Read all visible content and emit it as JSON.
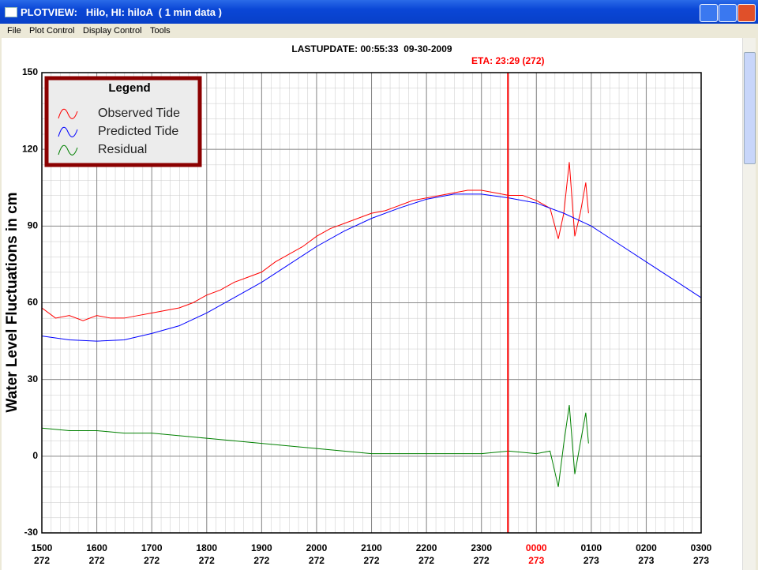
{
  "window": {
    "title": "PLOTVIEW:   Hilo, HI: hiloA  ( 1 min data )"
  },
  "menu": [
    "File",
    "Plot Control",
    "Display Control",
    "Tools"
  ],
  "chart_data": {
    "type": "line",
    "title": "LASTUPDATE: 00:55:33  09-30-2009",
    "ylabel": "Water Level Fluctuations in cm",
    "legend_title": "Legend",
    "eta": {
      "text": "ETA: 23:29 (272)",
      "x": 23.483,
      "color": "#ff0000"
    },
    "xlim": [
      15,
      27
    ],
    "ylim": [
      -30,
      150
    ],
    "yticks": [
      -30,
      0,
      30,
      60,
      90,
      120,
      150
    ],
    "xticks": [
      {
        "value": 15,
        "label": "1500",
        "day": "272"
      },
      {
        "value": 16,
        "label": "1600",
        "day": "272"
      },
      {
        "value": 17,
        "label": "1700",
        "day": "272"
      },
      {
        "value": 18,
        "label": "1800",
        "day": "272"
      },
      {
        "value": 19,
        "label": "1900",
        "day": "272"
      },
      {
        "value": 20,
        "label": "2000",
        "day": "272"
      },
      {
        "value": 21,
        "label": "2100",
        "day": "272"
      },
      {
        "value": 22,
        "label": "2200",
        "day": "272"
      },
      {
        "value": 23,
        "label": "2300",
        "day": "272"
      },
      {
        "value": 24,
        "label": "0000",
        "day": "273"
      },
      {
        "value": 25,
        "label": "0100",
        "day": "273"
      },
      {
        "value": 26,
        "label": "0200",
        "day": "273"
      },
      {
        "value": 27,
        "label": "0300",
        "day": "273"
      }
    ],
    "series": [
      {
        "name": "Observed Tide",
        "color": "#ff0000",
        "x": [
          15,
          15.25,
          15.5,
          15.75,
          16,
          16.25,
          16.5,
          16.75,
          17,
          17.25,
          17.5,
          17.75,
          18,
          18.25,
          18.5,
          18.75,
          19,
          19.25,
          19.5,
          19.75,
          20,
          20.25,
          20.5,
          20.75,
          21,
          21.25,
          21.5,
          21.75,
          22,
          22.25,
          22.5,
          22.75,
          23,
          23.25,
          23.5,
          23.75,
          24,
          24.25,
          24.4,
          24.5,
          24.6,
          24.7,
          24.8,
          24.9,
          24.95
        ],
        "values": [
          58,
          54,
          55,
          53,
          55,
          54,
          54,
          55,
          56,
          57,
          58,
          60,
          63,
          65,
          68,
          70,
          72,
          76,
          79,
          82,
          86,
          89,
          91,
          93,
          95,
          96,
          98,
          100,
          101,
          102,
          103,
          104,
          104,
          103,
          102,
          102,
          100,
          97,
          85,
          95,
          115,
          86,
          95,
          107,
          95
        ]
      },
      {
        "name": "Predicted Tide",
        "color": "#0000ff",
        "x": [
          15,
          15.5,
          16,
          16.5,
          17,
          17.5,
          18,
          18.5,
          19,
          19.5,
          20,
          20.5,
          21,
          21.5,
          22,
          22.5,
          23,
          23.5,
          24,
          24.5,
          25,
          25.5,
          26,
          26.5,
          27
        ],
        "values": [
          47,
          45.5,
          45,
          45.5,
          48,
          51,
          56,
          62,
          68,
          75,
          82,
          88,
          93,
          97,
          100.5,
          102.5,
          102.5,
          101,
          99,
          95,
          90,
          83,
          76,
          69,
          62
        ]
      },
      {
        "name": "Residual",
        "color": "#008000",
        "x": [
          15,
          15.5,
          16,
          16.5,
          17,
          17.5,
          18,
          18.5,
          19,
          19.5,
          20,
          20.5,
          21,
          21.5,
          22,
          22.5,
          23,
          23.5,
          24,
          24.25,
          24.4,
          24.5,
          24.6,
          24.7,
          24.8,
          24.9,
          24.95
        ],
        "values": [
          11,
          10,
          10,
          9,
          9,
          8,
          7,
          6,
          5,
          4,
          3,
          2,
          1,
          1,
          1,
          1,
          1,
          2,
          1,
          2,
          -12,
          5,
          20,
          -7,
          5,
          17,
          5
        ]
      }
    ]
  }
}
